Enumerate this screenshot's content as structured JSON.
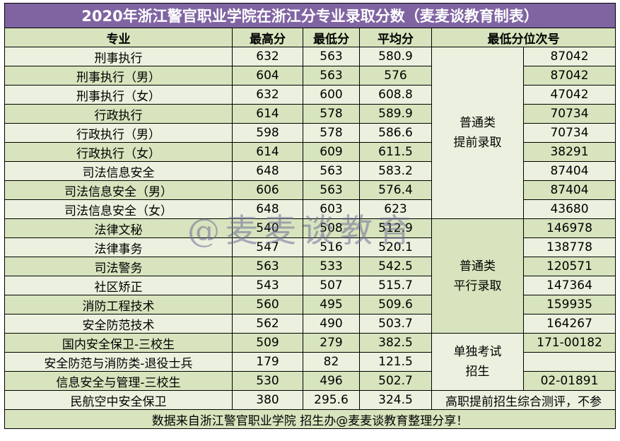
{
  "title": "2020年浙江警官职业学院在浙江分专业录取分数（麦麦谈教育制表）",
  "table": {
    "columns": [
      "专业",
      "最高分",
      "最低分",
      "平均分",
      "最低分位次号"
    ],
    "rows": [
      [
        "刑事执行",
        632,
        563,
        580.9,
        "87042"
      ],
      [
        "刑事执行（男）",
        604,
        563,
        576,
        "87042"
      ],
      [
        "刑事执行（女）",
        632,
        600,
        608.8,
        "47042"
      ],
      [
        "行政执行",
        614,
        578,
        589.9,
        "70734"
      ],
      [
        "行政执行（男）",
        598,
        578,
        586.6,
        "70734"
      ],
      [
        "行政执行（女）",
        614,
        609,
        611.5,
        "38291"
      ],
      [
        "司法信息安全",
        648,
        563,
        583.2,
        "87404"
      ],
      [
        "司法信息安全（男）",
        606,
        563,
        576.4,
        "87404"
      ],
      [
        "司法信息安全（女）",
        648,
        603,
        623,
        "43680"
      ],
      [
        "法律文秘",
        540,
        508,
        512.9,
        "146978"
      ],
      [
        "法律事务",
        547,
        516,
        520.1,
        "138778"
      ],
      [
        "司法警务",
        563,
        533,
        542.5,
        "120571"
      ],
      [
        "社区矫正",
        543,
        507,
        515.7,
        "147364"
      ],
      [
        "消防工程技术",
        560,
        495,
        509.6,
        "159935"
      ],
      [
        "安全防范技术",
        562,
        490,
        503.7,
        "164267"
      ],
      [
        "国内安全保卫-三校生",
        509,
        279,
        382.5,
        "171-00182"
      ],
      [
        "安全防范与消防类-退役士兵",
        179,
        82,
        121.5,
        null
      ],
      [
        "信息安全与管理-三校生",
        530,
        496,
        502.7,
        "02-01891"
      ],
      [
        "民航空中安全保卫",
        380,
        295.6,
        324.5,
        "高职提前招生综合测评，不参"
      ]
    ],
    "groups": [
      [
        "普通类",
        "提前录取"
      ],
      [
        "普通类",
        "平行录取"
      ],
      [
        "单独考试",
        "招生"
      ]
    ]
  },
  "footer": "数据来自浙江警官职业学院 招生办@麦麦谈教育整理分享！",
  "watermark": "@麦麦谈教育"
}
